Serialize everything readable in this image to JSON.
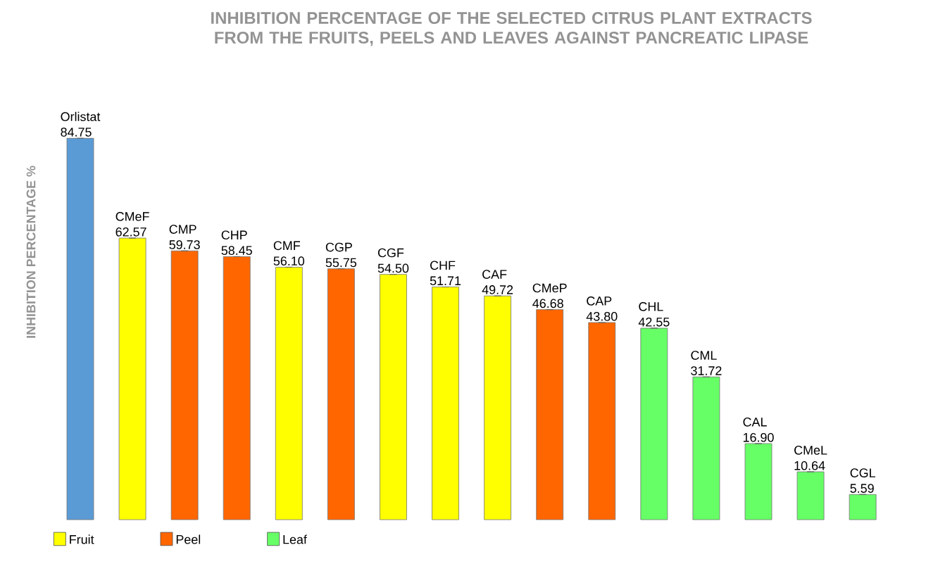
{
  "chart_data": {
    "type": "bar",
    "title": "INHIBITION PERCENTAGE OF THE SELECTED CITRUS PLANT EXTRACTS FROM THE FRUITS, PEELS AND LEAVES AGAINST PANCREATIC LIPASE",
    "ylabel": "INHIBITION PERCENTAGE %",
    "categories": [
      "Orlistat",
      "CMeF",
      "CMP",
      "CHP",
      "CMF",
      "CGP",
      "CGF",
      "CHF",
      "CAF",
      "CMeP",
      "CAP",
      "CHL",
      "CML",
      "CAL",
      "CMeL",
      "CGL"
    ],
    "series": [
      {
        "color": "#5b9bd5",
        "values": [
          84.75,
          null,
          null,
          null,
          null,
          null,
          null,
          null,
          null,
          null,
          null,
          null,
          null,
          null,
          null,
          null
        ],
        "value_labels": [
          "84.75",
          null,
          null,
          null,
          null,
          null,
          null,
          null,
          null,
          null,
          null,
          null,
          null,
          null,
          null,
          null
        ]
      },
      {
        "name": "Fruit",
        "color": "#ffff00",
        "values": [
          null,
          62.57,
          null,
          null,
          56.1,
          null,
          54.5,
          51.71,
          49.72,
          null,
          null,
          null,
          null,
          null,
          null,
          null
        ],
        "value_labels": [
          null,
          "62.57",
          null,
          null,
          "56.10",
          null,
          "54.50",
          "51.71",
          "49.72",
          null,
          null,
          null,
          null,
          null,
          null,
          null
        ]
      },
      {
        "name": "Peel",
        "color": "#ff6600",
        "values": [
          null,
          null,
          59.73,
          58.45,
          null,
          55.75,
          null,
          null,
          null,
          46.68,
          43.8,
          null,
          null,
          null,
          null,
          null
        ],
        "value_labels": [
          null,
          null,
          "59.73",
          "58.45",
          null,
          "55.75",
          null,
          null,
          null,
          "46.68",
          "43.80",
          null,
          null,
          null,
          null,
          null
        ]
      },
      {
        "name": "Leaf",
        "color": "#66ff66",
        "values": [
          null,
          null,
          null,
          null,
          null,
          null,
          null,
          null,
          null,
          null,
          null,
          42.55,
          31.72,
          16.9,
          10.64,
          5.59
        ],
        "value_labels": [
          null,
          null,
          null,
          null,
          null,
          null,
          null,
          null,
          null,
          null,
          null,
          "42.55",
          "31.72",
          "16.90",
          "10.64",
          "5.59"
        ]
      }
    ],
    "legend": "bottom left"
  }
}
